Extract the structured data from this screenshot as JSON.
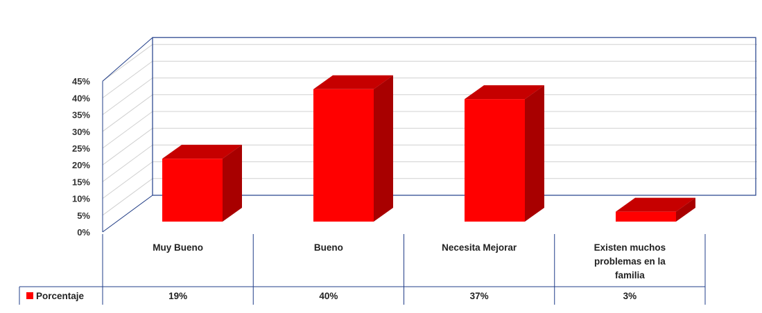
{
  "chart_data": {
    "type": "bar",
    "categories": [
      "Muy Bueno",
      "Bueno",
      "Necesita Mejorar",
      "Existen muchos problemas en la familia"
    ],
    "category_lines": [
      [
        "Muy Bueno"
      ],
      [
        "Bueno"
      ],
      [
        "Necesita Mejorar"
      ],
      [
        "Existen muchos",
        "problemas en la",
        "familia"
      ]
    ],
    "series": [
      {
        "name": "Porcentaje",
        "values": [
          19,
          40,
          37,
          3
        ],
        "labels": [
          "19%",
          "40%",
          "37%",
          "3%"
        ],
        "color": "#ff0000"
      }
    ],
    "y_ticks": [
      "0%",
      "5%",
      "10%",
      "15%",
      "20%",
      "25%",
      "30%",
      "35%",
      "40%",
      "45%"
    ],
    "ylim": [
      0,
      45
    ],
    "grid": true,
    "data_table": true,
    "legend": "data-table-left",
    "colors": {
      "bar_front": "#ff0000",
      "bar_top": "#c60000",
      "bar_side": "#a80000",
      "axis": "#1f3c88",
      "grid": "#d0d0d0"
    }
  }
}
